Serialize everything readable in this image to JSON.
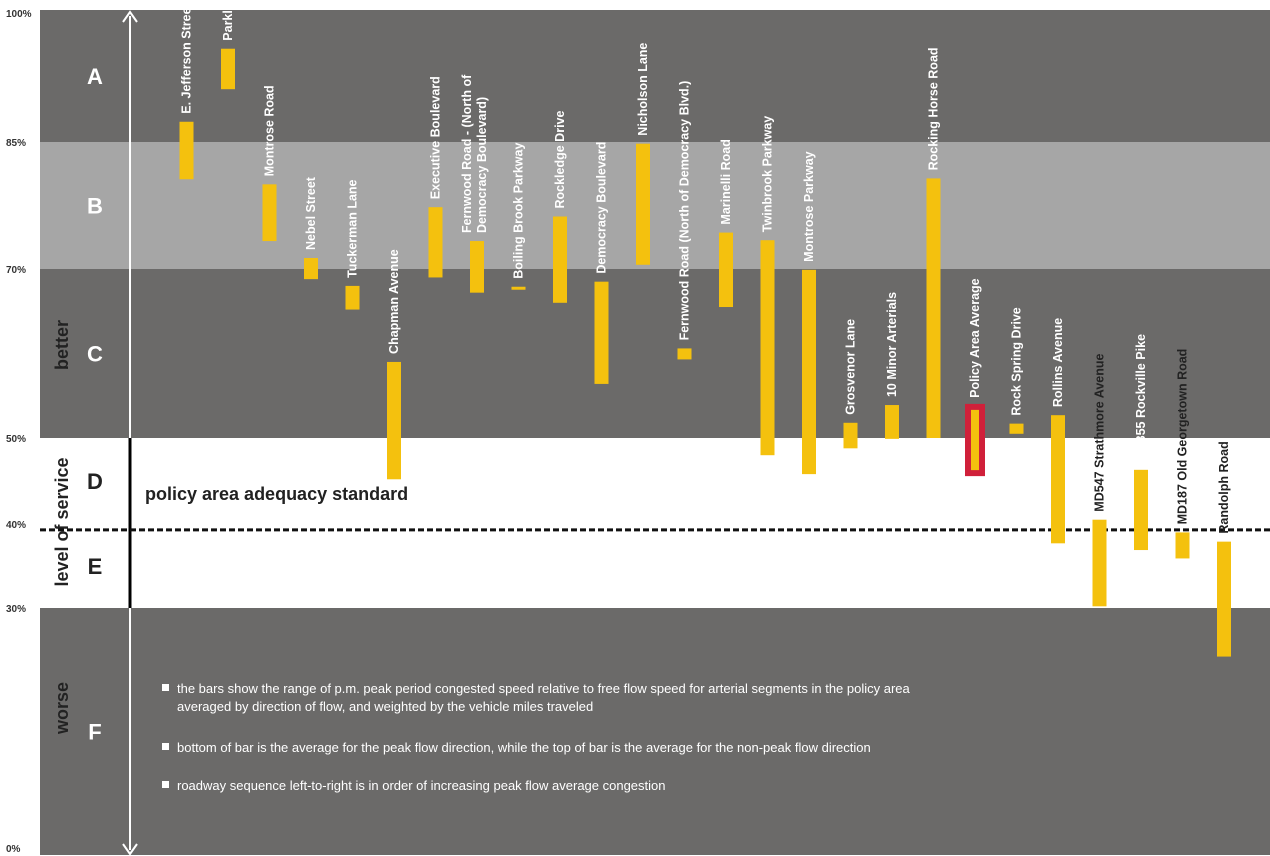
{
  "colors": {
    "dark_band": "#6b6a69",
    "light_band": "#a6a6a6",
    "white_band": "#ffffff",
    "bar": "#f4c10e",
    "highlight_border": "#d0203a",
    "standard_line": "#111111"
  },
  "chart_data": {
    "type": "bar",
    "subtype": "floating-range",
    "ylim": [
      0,
      100
    ],
    "y_tick_labels": [
      "100%",
      "85%",
      "70%",
      "50%",
      "40%",
      "30%",
      "0%"
    ],
    "y_ticks": [
      100,
      85,
      70,
      50,
      40,
      30,
      0
    ],
    "side_labels": {
      "better": "better",
      "level_of_service": "level of service",
      "worse": "worse"
    },
    "levels": [
      {
        "letter": "A",
        "from": 85,
        "to": 100,
        "shade": "dark"
      },
      {
        "letter": "B",
        "from": 70,
        "to": 85,
        "shade": "light"
      },
      {
        "letter": "C",
        "from": 50,
        "to": 70,
        "shade": "dark"
      },
      {
        "letter": "D",
        "from": 40,
        "to": 50,
        "shade": "white"
      },
      {
        "letter": "E",
        "from": 30,
        "to": 40,
        "shade": "white"
      },
      {
        "letter": "F",
        "from": 0,
        "to": 30,
        "shade": "dark"
      }
    ],
    "standard": {
      "value": 39.3,
      "label": "policy area adequacy standard"
    },
    "series": [
      {
        "name": "E. Jefferson Street",
        "low": 80.6,
        "high": 87.3
      },
      {
        "name": "Parklawn Drive",
        "low": 91.0,
        "high": 95.6
      },
      {
        "name": "Montrose Road",
        "low": 73.3,
        "high": 80.0
      },
      {
        "name": "Nebel Street",
        "low": 68.8,
        "high": 71.3
      },
      {
        "name": "Tuckerman Lane",
        "low": 65.2,
        "high": 68.0
      },
      {
        "name": "Chapman Avenue",
        "low": 45.2,
        "high": 59.0
      },
      {
        "name": "Executive Boulevard",
        "low": 69.0,
        "high": 77.3
      },
      {
        "name": "Fernwood Road - (North of Democracy Boulevard)",
        "low": 67.2,
        "high": 73.3
      },
      {
        "name": "Boiling Brook Parkway",
        "low": 67.6,
        "high": 67.9
      },
      {
        "name": "Rockledge Drive",
        "low": 66.0,
        "high": 76.2
      },
      {
        "name": "Democracy Boulevard",
        "low": 56.4,
        "high": 68.5
      },
      {
        "name": "Nicholson Lane",
        "low": 70.5,
        "high": 84.8
      },
      {
        "name": "Fernwood Road (North of Democracy Blvd.)",
        "low": 59.3,
        "high": 60.6
      },
      {
        "name": "Marinelli Road",
        "low": 65.5,
        "high": 74.3
      },
      {
        "name": "Twinbrook Parkway",
        "low": 48.0,
        "high": 73.4
      },
      {
        "name": "Montrose Parkway",
        "low": 45.8,
        "high": 69.9
      },
      {
        "name": "Grosvenor Lane",
        "low": 48.8,
        "high": 51.8
      },
      {
        "name": "10 Minor Arterials",
        "low": 49.9,
        "high": 53.9
      },
      {
        "name": "Rocking Horse Road",
        "low": 50.0,
        "high": 80.7
      },
      {
        "name": "Policy Area Average",
        "low": 45.8,
        "high": 53.8,
        "highlight": true
      },
      {
        "name": "Rock Spring Drive",
        "low": 50.5,
        "high": 51.7
      },
      {
        "name": "Rollins Avenue",
        "low": 37.7,
        "high": 52.7
      },
      {
        "name": "MD547 Strathmore Avenue",
        "low": 30.2,
        "high": 40.5
      },
      {
        "name": "MD355 Rockville Pike",
        "low": 36.9,
        "high": 46.3
      },
      {
        "name": "MD187 Old Georgetown Road",
        "low": 35.9,
        "high": 39.0
      },
      {
        "name": "Randolph Road",
        "low": 24.1,
        "high": 37.9
      }
    ],
    "notes": [
      "the bars show the range of p.m. peak period congested speed relative to free flow speed for arterial segments in the policy area averaged by direction of flow, and weighted by the vehicle miles traveled",
      "bottom of bar is the average for the peak flow direction, while the top of bar is the average for the non-peak flow direction",
      "roadway sequence left-to-right is in order of increasing peak flow average congestion"
    ]
  }
}
